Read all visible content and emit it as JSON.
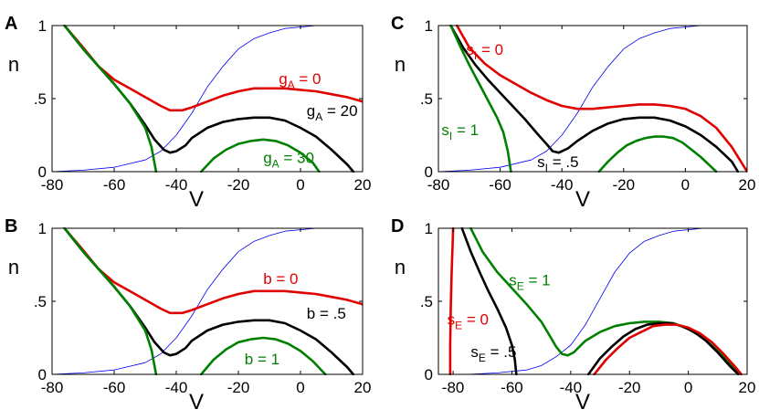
{
  "chart_data": [
    {
      "panel": "A",
      "type": "line",
      "xlabel": "V",
      "ylabel": "n",
      "xlim": [
        -80,
        20
      ],
      "ylim": [
        0,
        1
      ],
      "xticks": [
        "-80",
        "-60",
        "-40",
        "-20",
        "0",
        "20"
      ],
      "yticks": [
        "0",
        ".5",
        "1"
      ],
      "series": [
        {
          "color": "#0000ee",
          "x": [
            -80,
            -70,
            -60,
            -50,
            -45,
            -40,
            -35,
            -30,
            -25,
            -20,
            -15,
            -10,
            -5,
            0,
            5,
            10,
            20
          ],
          "y": [
            0.0,
            0.01,
            0.03,
            0.08,
            0.14,
            0.25,
            0.4,
            0.58,
            0.72,
            0.84,
            0.91,
            0.95,
            0.98,
            0.99,
            1.0,
            1.0,
            1.0
          ]
        },
        {
          "color": "#e00000",
          "x": [
            -76,
            -70,
            -65,
            -60,
            -55,
            -50,
            -45,
            -42,
            -38,
            -35,
            -30,
            -25,
            -20,
            -15,
            -10,
            -5,
            0,
            5,
            10,
            15,
            20
          ],
          "y": [
            1.0,
            0.85,
            0.72,
            0.63,
            0.57,
            0.51,
            0.45,
            0.42,
            0.42,
            0.44,
            0.48,
            0.52,
            0.55,
            0.57,
            0.57,
            0.57,
            0.56,
            0.55,
            0.53,
            0.51,
            0.48
          ]
        },
        {
          "color": "#000000",
          "x": [
            -76,
            -70,
            -65,
            -60,
            -55,
            -50,
            -47,
            -44,
            -42,
            -40,
            -37,
            -35,
            -30,
            -25,
            -20,
            -15,
            -10,
            -5,
            0,
            5,
            10,
            15,
            17
          ],
          "y": [
            1.0,
            0.84,
            0.72,
            0.6,
            0.47,
            0.32,
            0.22,
            0.15,
            0.13,
            0.14,
            0.18,
            0.23,
            0.3,
            0.34,
            0.36,
            0.37,
            0.37,
            0.35,
            0.3,
            0.24,
            0.15,
            0.05,
            0.0
          ]
        },
        {
          "color": "#008000",
          "x": [
            -76,
            -70,
            -65,
            -60,
            -55,
            -50,
            -48,
            -46.5
          ],
          "y": [
            1.0,
            0.84,
            0.72,
            0.6,
            0.47,
            0.3,
            0.17,
            0.0
          ]
        },
        {
          "color": "#008000",
          "x": [
            -32,
            -28,
            -24,
            -20,
            -16,
            -12,
            -8,
            -4,
            0,
            4,
            6
          ],
          "y": [
            0.0,
            0.09,
            0.15,
            0.19,
            0.21,
            0.22,
            0.21,
            0.18,
            0.13,
            0.06,
            0.0
          ]
        }
      ],
      "annotations": [
        {
          "text": "g",
          "sub": "A",
          "rest": " = 0",
          "color": "#e00000",
          "x": -7,
          "y": 0.6
        },
        {
          "text": "g",
          "sub": "A",
          "rest": " = 20",
          "color": "#000000",
          "x": 2,
          "y": 0.38
        },
        {
          "text": "g",
          "sub": "A",
          "rest": " = 30",
          "color": "#008000",
          "x": -12,
          "y": 0.06
        }
      ]
    },
    {
      "panel": "B",
      "type": "line",
      "xlabel": "V",
      "ylabel": "n",
      "xlim": [
        -80,
        20
      ],
      "ylim": [
        0,
        1
      ],
      "xticks": [
        "-80",
        "-60",
        "-40",
        "-20",
        "0",
        "20"
      ],
      "yticks": [
        "0",
        ".5",
        "1"
      ],
      "series": [
        {
          "color": "#0000ee",
          "x": [
            -80,
            -70,
            -60,
            -50,
            -45,
            -40,
            -35,
            -30,
            -25,
            -20,
            -15,
            -10,
            -5,
            0,
            5,
            10,
            20
          ],
          "y": [
            0.0,
            0.01,
            0.03,
            0.08,
            0.14,
            0.25,
            0.4,
            0.58,
            0.72,
            0.84,
            0.91,
            0.95,
            0.98,
            0.99,
            1.0,
            1.0,
            1.0
          ]
        },
        {
          "color": "#e00000",
          "x": [
            -76,
            -70,
            -65,
            -60,
            -55,
            -50,
            -45,
            -42,
            -38,
            -35,
            -30,
            -25,
            -20,
            -15,
            -10,
            -5,
            0,
            5,
            10,
            15,
            20
          ],
          "y": [
            1.0,
            0.85,
            0.72,
            0.63,
            0.57,
            0.51,
            0.45,
            0.42,
            0.42,
            0.44,
            0.48,
            0.52,
            0.55,
            0.57,
            0.57,
            0.57,
            0.56,
            0.55,
            0.53,
            0.51,
            0.48
          ]
        },
        {
          "color": "#000000",
          "x": [
            -76,
            -70,
            -65,
            -60,
            -55,
            -50,
            -47,
            -44,
            -42,
            -40,
            -37,
            -35,
            -30,
            -25,
            -20,
            -15,
            -10,
            -5,
            0,
            5,
            10,
            15,
            17
          ],
          "y": [
            1.0,
            0.84,
            0.72,
            0.6,
            0.47,
            0.32,
            0.22,
            0.15,
            0.13,
            0.14,
            0.18,
            0.23,
            0.3,
            0.34,
            0.36,
            0.37,
            0.37,
            0.35,
            0.3,
            0.24,
            0.15,
            0.05,
            0.0
          ]
        },
        {
          "color": "#008000",
          "x": [
            -76,
            -70,
            -65,
            -60,
            -55,
            -50,
            -48,
            -46.5
          ],
          "y": [
            1.0,
            0.84,
            0.72,
            0.6,
            0.47,
            0.3,
            0.17,
            0.0
          ]
        },
        {
          "color": "#008000",
          "x": [
            -32,
            -28,
            -24,
            -20,
            -16,
            -12,
            -8,
            -4,
            0,
            4,
            8
          ],
          "y": [
            0.0,
            0.1,
            0.17,
            0.22,
            0.24,
            0.25,
            0.24,
            0.21,
            0.16,
            0.09,
            0.0
          ]
        }
      ],
      "annotations": [
        {
          "text": "b = 0",
          "color": "#e00000",
          "x": -12,
          "y": 0.62
        },
        {
          "text": "b = .5",
          "color": "#000000",
          "x": 2,
          "y": 0.38
        },
        {
          "text": "b = 1",
          "color": "#008000",
          "x": -18,
          "y": 0.07
        }
      ]
    },
    {
      "panel": "C",
      "type": "line",
      "xlabel": "V",
      "ylabel": "n",
      "xlim": [
        -80,
        20
      ],
      "ylim": [
        0,
        1
      ],
      "xticks": [
        "-80",
        "-60",
        "-40",
        "-20",
        "0",
        "20"
      ],
      "yticks": [
        "0",
        ".5",
        "1"
      ],
      "series": [
        {
          "color": "#0000ee",
          "x": [
            -80,
            -70,
            -60,
            -50,
            -45,
            -40,
            -35,
            -30,
            -25,
            -20,
            -15,
            -10,
            -5,
            0,
            5,
            10,
            20
          ],
          "y": [
            0.0,
            0.01,
            0.03,
            0.08,
            0.14,
            0.25,
            0.4,
            0.58,
            0.72,
            0.84,
            0.91,
            0.95,
            0.98,
            0.99,
            1.0,
            1.0,
            1.0
          ]
        },
        {
          "color": "#e00000",
          "x": [
            -74,
            -70,
            -65,
            -60,
            -55,
            -50,
            -45,
            -40,
            -35,
            -30,
            -25,
            -20,
            -15,
            -10,
            -5,
            0,
            5,
            10,
            15,
            20
          ],
          "y": [
            1.0,
            0.85,
            0.74,
            0.66,
            0.6,
            0.54,
            0.49,
            0.45,
            0.43,
            0.43,
            0.44,
            0.45,
            0.46,
            0.46,
            0.45,
            0.43,
            0.38,
            0.3,
            0.17,
            0.0
          ]
        },
        {
          "color": "#000000",
          "x": [
            -76,
            -72,
            -68,
            -64,
            -60,
            -56,
            -52,
            -48,
            -45,
            -43,
            -41,
            -38,
            -35,
            -30,
            -25,
            -20,
            -15,
            -10,
            -5,
            0,
            5,
            10,
            15,
            17
          ],
          "y": [
            1.0,
            0.85,
            0.73,
            0.63,
            0.54,
            0.45,
            0.36,
            0.26,
            0.19,
            0.14,
            0.13,
            0.16,
            0.21,
            0.28,
            0.33,
            0.36,
            0.37,
            0.37,
            0.35,
            0.31,
            0.25,
            0.17,
            0.07,
            0.0
          ]
        },
        {
          "color": "#008000",
          "x": [
            -76,
            -73,
            -70,
            -67,
            -64,
            -61,
            -59,
            -57.5,
            -56.5
          ],
          "y": [
            1.0,
            0.86,
            0.73,
            0.61,
            0.49,
            0.37,
            0.27,
            0.14,
            0.0
          ]
        },
        {
          "color": "#008000",
          "x": [
            -28,
            -25,
            -22,
            -19,
            -16,
            -13,
            -10,
            -7,
            -4,
            -1,
            2,
            5,
            8,
            10
          ],
          "y": [
            0.0,
            0.07,
            0.13,
            0.18,
            0.21,
            0.23,
            0.24,
            0.24,
            0.23,
            0.2,
            0.15,
            0.1,
            0.04,
            0.0
          ]
        }
      ],
      "annotations": [
        {
          "text": "s",
          "sub": "I",
          "rest": " = 0",
          "color": "#e00000",
          "x": -71,
          "y": 0.8
        },
        {
          "text": "s",
          "sub": "I",
          "rest": " = 1",
          "color": "#008000",
          "x": -79,
          "y": 0.25
        },
        {
          "text": "s",
          "sub": "I",
          "rest": " = .5",
          "color": "#000000",
          "x": -48,
          "y": 0.03
        }
      ]
    },
    {
      "panel": "D",
      "type": "line",
      "xlabel": "V",
      "ylabel": "n",
      "xlim": [
        -85,
        20
      ],
      "ylim": [
        0,
        1
      ],
      "xticks": [
        "-80",
        "-60",
        "-40",
        "-20",
        "0",
        "20"
      ],
      "yticks": [
        "0",
        ".5",
        "1"
      ],
      "series": [
        {
          "color": "#0000ee",
          "x": [
            -85,
            -75,
            -65,
            -55,
            -50,
            -45,
            -40,
            -35,
            -30,
            -25,
            -20,
            -15,
            -10,
            -5,
            0,
            5,
            10,
            20
          ],
          "y": [
            0.0,
            0.0,
            0.01,
            0.03,
            0.06,
            0.12,
            0.2,
            0.34,
            0.52,
            0.7,
            0.83,
            0.91,
            0.95,
            0.98,
            0.99,
            1.0,
            1.0,
            1.0
          ]
        },
        {
          "color": "#e00000",
          "x": [
            -81,
            -81,
            -80.8,
            -80.5,
            -80.2,
            -80
          ],
          "y": [
            0.0,
            0.2,
            0.45,
            0.7,
            0.88,
            1.0
          ]
        },
        {
          "color": "#000000",
          "x": [
            -77,
            -74,
            -71,
            -68,
            -65,
            -62,
            -60,
            -59,
            -58.5
          ],
          "y": [
            1.0,
            0.84,
            0.7,
            0.57,
            0.45,
            0.32,
            0.2,
            0.1,
            0.0
          ]
        },
        {
          "color": "#008000",
          "x": [
            -74,
            -70,
            -65,
            -60,
            -55,
            -50,
            -47,
            -45,
            -43,
            -41,
            -39,
            -37,
            -35,
            -30,
            -25,
            -20,
            -15,
            -10,
            -5,
            0,
            5,
            10,
            15,
            17
          ],
          "y": [
            1.0,
            0.84,
            0.7,
            0.59,
            0.48,
            0.36,
            0.26,
            0.19,
            0.14,
            0.13,
            0.15,
            0.19,
            0.23,
            0.29,
            0.33,
            0.35,
            0.36,
            0.36,
            0.35,
            0.31,
            0.25,
            0.16,
            0.06,
            0.0
          ]
        },
        {
          "color": "#000000",
          "x": [
            -34,
            -30,
            -26,
            -22,
            -18,
            -14,
            -10,
            -6,
            -2,
            2,
            6,
            10,
            14,
            17
          ],
          "y": [
            0.0,
            0.11,
            0.19,
            0.26,
            0.31,
            0.34,
            0.35,
            0.35,
            0.33,
            0.29,
            0.23,
            0.15,
            0.06,
            0.0
          ]
        },
        {
          "color": "#e00000",
          "x": [
            -32,
            -28,
            -24,
            -20,
            -16,
            -12,
            -8,
            -4,
            0,
            4,
            8,
            12,
            16,
            18
          ],
          "y": [
            0.0,
            0.1,
            0.18,
            0.25,
            0.29,
            0.33,
            0.34,
            0.34,
            0.32,
            0.28,
            0.22,
            0.14,
            0.05,
            0.0
          ]
        }
      ],
      "annotations": [
        {
          "text": "s",
          "sub": "E",
          "rest": " = 1",
          "color": "#008000",
          "x": -61,
          "y": 0.61
        },
        {
          "text": "s",
          "sub": "E",
          "rest": " = 0",
          "color": "#e00000",
          "x": -82,
          "y": 0.34
        },
        {
          "text": "s",
          "sub": "E",
          "rest": " = .5",
          "color": "#000000",
          "x": -74,
          "y": 0.12
        }
      ]
    }
  ]
}
